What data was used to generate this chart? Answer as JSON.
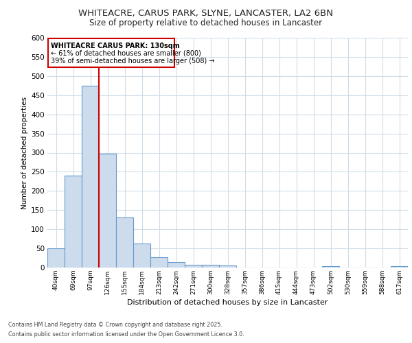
{
  "title1": "WHITEACRE, CARUS PARK, SLYNE, LANCASTER, LA2 6BN",
  "title2": "Size of property relative to detached houses in Lancaster",
  "xlabel": "Distribution of detached houses by size in Lancaster",
  "ylabel": "Number of detached properties",
  "categories": [
    "40sqm",
    "69sqm",
    "97sqm",
    "126sqm",
    "155sqm",
    "184sqm",
    "213sqm",
    "242sqm",
    "271sqm",
    "300sqm",
    "328sqm",
    "357sqm",
    "386sqm",
    "415sqm",
    "444sqm",
    "473sqm",
    "502sqm",
    "530sqm",
    "559sqm",
    "588sqm",
    "617sqm"
  ],
  "values": [
    50,
    240,
    475,
    298,
    130,
    63,
    27,
    15,
    8,
    8,
    6,
    0,
    0,
    0,
    0,
    0,
    4,
    0,
    0,
    0,
    4
  ],
  "bar_color": "#ccdcec",
  "bar_edge_color": "#6699cc",
  "vline_x_index": 2.5,
  "annotation_title": "WHITEACRE CARUS PARK: 130sqm",
  "annotation_line1": "← 61% of detached houses are smaller (800)",
  "annotation_line2": "39% of semi-detached houses are larger (508) →",
  "annotation_box_color": "#ffffff",
  "annotation_box_edge": "#cc0000",
  "vline_color": "#cc0000",
  "ylim": [
    0,
    600
  ],
  "yticks": [
    0,
    50,
    100,
    150,
    200,
    250,
    300,
    350,
    400,
    450,
    500,
    550,
    600
  ],
  "footer1": "Contains HM Land Registry data © Crown copyright and database right 2025.",
  "footer2": "Contains public sector information licensed under the Open Government Licence 3.0.",
  "bg_color": "#ffffff",
  "plot_bg_color": "#ffffff",
  "grid_color": "#d0dce8"
}
